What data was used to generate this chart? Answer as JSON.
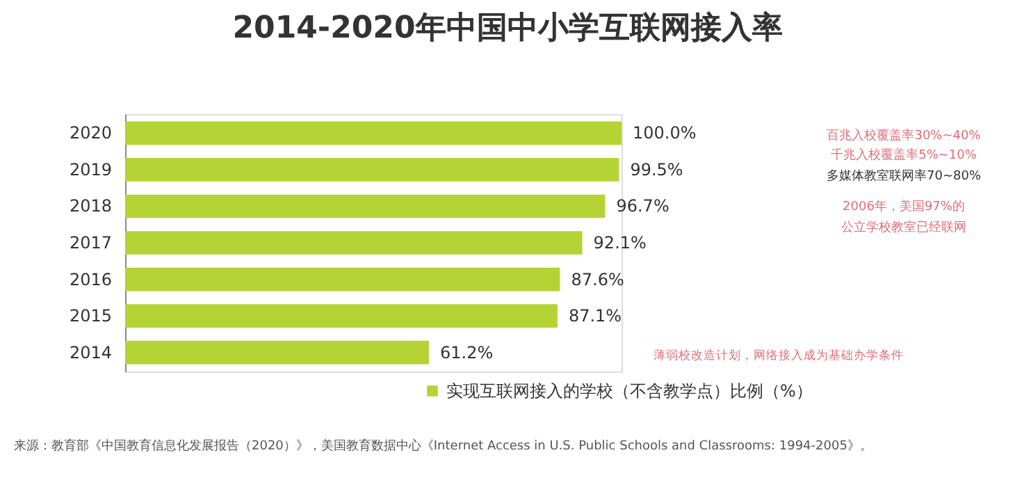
{
  "chart_data": {
    "type": "bar",
    "orientation": "horizontal",
    "title": "2014-2020年中国中小学互联网接入率",
    "categories": [
      "2020",
      "2019",
      "2018",
      "2017",
      "2016",
      "2015",
      "2014"
    ],
    "series": [
      {
        "name": "实现互联网接入的学校（不含教学点）比例（%）",
        "color": "#b5d334",
        "values": [
          100.0,
          99.5,
          96.7,
          92.1,
          87.6,
          87.1,
          61.2
        ],
        "value_labels": [
          "100.0%",
          "99.5%",
          "96.7%",
          "92.1%",
          "87.6%",
          "87.1%",
          "61.2%"
        ]
      }
    ],
    "xlim": [
      0,
      100
    ],
    "tick_labels": "y",
    "legend": "bottom",
    "annotations": [
      "百兆入校覆盖率30%~40%",
      "千兆入校覆盖率5%~10%",
      "多媒体教室联网率70~80%",
      "2006年，美国97%的公立学校教室已经联网",
      "薄弱校改造计划，网络接入成为基础办学条件",
      "来源：教育部《中国教育信息化发展报告（2020）》，美国教育数据中心《Internet Access in U.S. Public Schools and Classrooms: 1994-2005》。"
    ]
  }
}
